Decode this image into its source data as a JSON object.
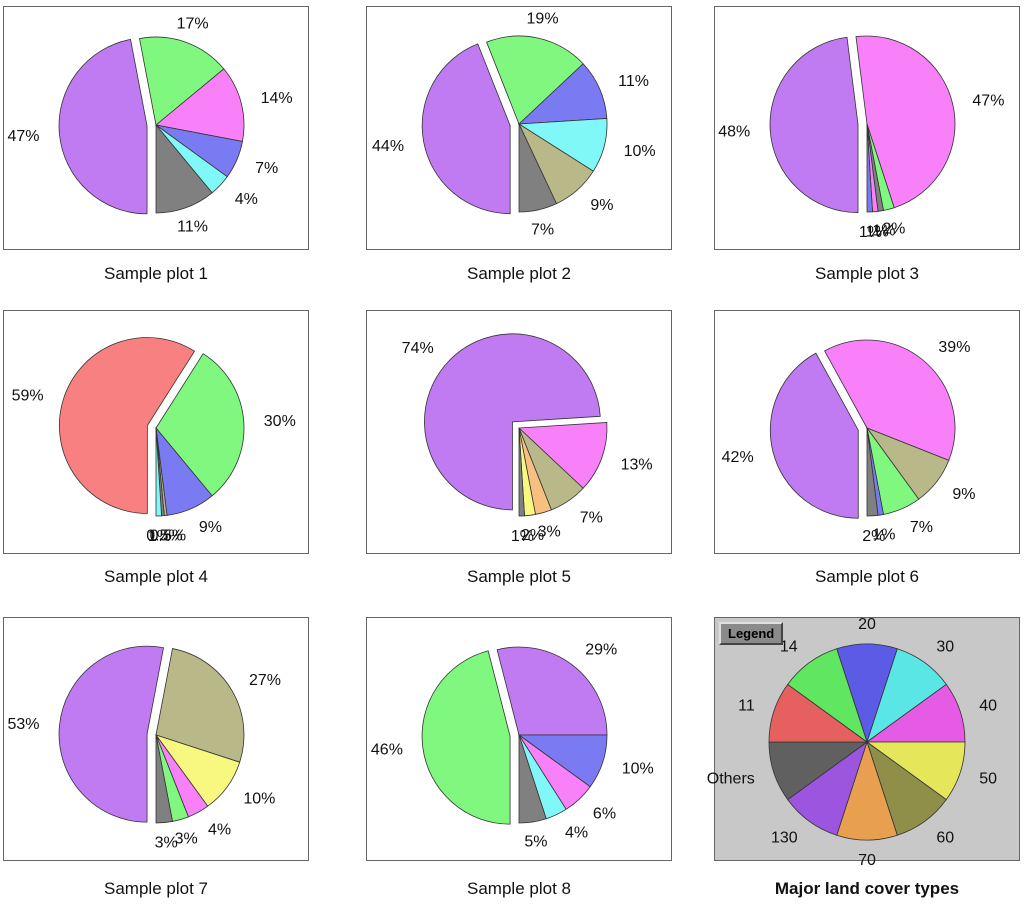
{
  "colors": {
    "20": "#5b5be6",
    "30": "#5be6e6",
    "40": "#e65be6",
    "50": "#e6e65b",
    "60": "#8f8f4a",
    "70": "#e8a050",
    "130": "#9b55de",
    "others": "#606060",
    "11": "#e66060",
    "14": "#60e660",
    "purple": "#c07af2",
    "green": "#80f880",
    "pink": "#f880f8",
    "blue": "#7a7af2",
    "cyan": "#80f8f8",
    "grey": "#808080",
    "olive": "#b8b888",
    "yellow": "#f8f880",
    "orange": "#f8c080",
    "salmon": "#f88080"
  },
  "chart_data": [
    {
      "type": "pie",
      "title": "Sample plot 1",
      "slices": [
        {
          "value": 47,
          "label": "47%",
          "color": "#c07af2"
        },
        {
          "value": 17,
          "label": "17%",
          "color": "#80f880"
        },
        {
          "value": 14,
          "label": "14%",
          "color": "#f880f8"
        },
        {
          "value": 7,
          "label": "7%",
          "color": "#7a7af2"
        },
        {
          "value": 4,
          "label": "4%",
          "color": "#80f8f8"
        },
        {
          "value": 11,
          "label": "11%",
          "color": "#808080"
        }
      ]
    },
    {
      "type": "pie",
      "title": "Sample plot 2",
      "slices": [
        {
          "value": 44,
          "label": "44%",
          "color": "#c07af2"
        },
        {
          "value": 19,
          "label": "19%",
          "color": "#80f880"
        },
        {
          "value": 11,
          "label": "11%",
          "color": "#7a7af2"
        },
        {
          "value": 10,
          "label": "10%",
          "color": "#80f8f8"
        },
        {
          "value": 9,
          "label": "9%",
          "color": "#b8b888"
        },
        {
          "value": 7,
          "label": "7%",
          "color": "#808080"
        }
      ]
    },
    {
      "type": "pie",
      "title": "Sample plot 3",
      "slices": [
        {
          "value": 48,
          "label": "48%",
          "color": "#c07af2"
        },
        {
          "value": 47,
          "label": "47%",
          "color": "#f880f8"
        },
        {
          "value": 2,
          "label": "2%",
          "color": "#80f880"
        },
        {
          "value": 1,
          "label": "1%",
          "color": "#808080"
        },
        {
          "value": 1,
          "label": "1%",
          "color": "#f880f8"
        },
        {
          "value": 1,
          "label": "1%",
          "color": "#7a7af2"
        }
      ]
    },
    {
      "type": "pie",
      "title": "Sample plot 4",
      "slices": [
        {
          "value": 59,
          "label": "59%",
          "color": "#f88080"
        },
        {
          "value": 30,
          "label": "30%",
          "color": "#80f880"
        },
        {
          "value": 9,
          "label": "9%",
          "color": "#7a7af2"
        },
        {
          "value": 0.5,
          "label": "0.5%",
          "color": "#b8b888"
        },
        {
          "value": 0.5,
          "label": "0.5%",
          "color": "#808080"
        },
        {
          "value": 1,
          "label": "1%",
          "color": "#80f8f8"
        }
      ]
    },
    {
      "type": "pie",
      "title": "Sample plot 5",
      "slices": [
        {
          "value": 74,
          "label": "74%",
          "color": "#c07af2"
        },
        {
          "value": 13,
          "label": "13%",
          "color": "#f880f8"
        },
        {
          "value": 7,
          "label": "7%",
          "color": "#b8b888"
        },
        {
          "value": 3,
          "label": "3%",
          "color": "#f8c080"
        },
        {
          "value": 2,
          "label": "2%",
          "color": "#f8f880"
        },
        {
          "value": 1,
          "label": "1%",
          "color": "#808080"
        }
      ]
    },
    {
      "type": "pie",
      "title": "Sample plot 6",
      "slices": [
        {
          "value": 42,
          "label": "42%",
          "color": "#c07af2"
        },
        {
          "value": 39,
          "label": "39%",
          "color": "#f880f8"
        },
        {
          "value": 9,
          "label": "9%",
          "color": "#b8b888"
        },
        {
          "value": 7,
          "label": "7%",
          "color": "#80f880"
        },
        {
          "value": 1,
          "label": "1%",
          "color": "#7a7af2"
        },
        {
          "value": 2,
          "label": "2%",
          "color": "#808080"
        }
      ]
    },
    {
      "type": "pie",
      "title": "Sample plot 7",
      "slices": [
        {
          "value": 53,
          "label": "53%",
          "color": "#c07af2"
        },
        {
          "value": 27,
          "label": "27%",
          "color": "#b8b888"
        },
        {
          "value": 10,
          "label": "10%",
          "color": "#f8f880"
        },
        {
          "value": 4,
          "label": "4%",
          "color": "#f880f8"
        },
        {
          "value": 3,
          "label": "3%",
          "color": "#80f880"
        },
        {
          "value": 3,
          "label": "3%",
          "color": "#808080"
        }
      ]
    },
    {
      "type": "pie",
      "title": "Sample plot 8",
      "slices": [
        {
          "value": 46,
          "label": "46%",
          "color": "#80f880"
        },
        {
          "value": 29,
          "label": "29%",
          "color": "#c07af2"
        },
        {
          "value": 10,
          "label": "10%",
          "color": "#7a7af2"
        },
        {
          "value": 6,
          "label": "6%",
          "color": "#f880f8"
        },
        {
          "value": 4,
          "label": "4%",
          "color": "#80f8f8"
        },
        {
          "value": 5,
          "label": "5%",
          "color": "#808080"
        }
      ]
    },
    {
      "type": "pie",
      "title": "Major land cover types",
      "legend_tag": "Legend",
      "slices": [
        {
          "value": 1,
          "label": "20",
          "color": "#5b5be6"
        },
        {
          "value": 1,
          "label": "30",
          "color": "#5be6e6"
        },
        {
          "value": 1,
          "label": "40",
          "color": "#e65be6"
        },
        {
          "value": 1,
          "label": "50",
          "color": "#e6e65b"
        },
        {
          "value": 1,
          "label": "60",
          "color": "#8f8f4a"
        },
        {
          "value": 1,
          "label": "70",
          "color": "#e8a050"
        },
        {
          "value": 1,
          "label": "130",
          "color": "#9b55de"
        },
        {
          "value": 1,
          "label": "Others",
          "color": "#606060"
        },
        {
          "value": 1,
          "label": "11",
          "color": "#e66060"
        },
        {
          "value": 1,
          "label": "14",
          "color": "#60e660"
        }
      ]
    }
  ]
}
